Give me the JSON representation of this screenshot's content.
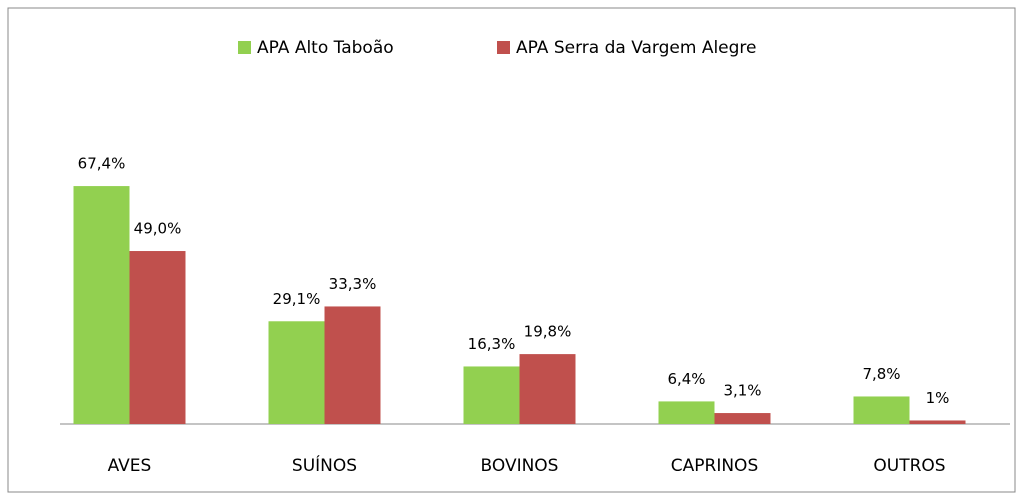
{
  "chart_data": {
    "type": "bar",
    "categories": [
      "AVES",
      "SUÍNOS",
      "BOVINOS",
      "CAPRINOS",
      "OUTROS"
    ],
    "series": [
      {
        "name": "APA Alto Taboão",
        "color": "#92d050",
        "values": [
          67.4,
          29.1,
          16.3,
          6.4,
          7.8
        ],
        "value_labels": [
          "67,4%",
          "29,1%",
          "16,3%",
          "6,4%",
          "7,8%"
        ]
      },
      {
        "name": "APA Serra da Vargem Alegre",
        "color": "#c0504d",
        "values": [
          49.0,
          33.3,
          19.8,
          3.1,
          1
        ],
        "value_labels": [
          "49,0%",
          "33,3%",
          "19,8%",
          "3,1%",
          "1%"
        ]
      }
    ]
  }
}
